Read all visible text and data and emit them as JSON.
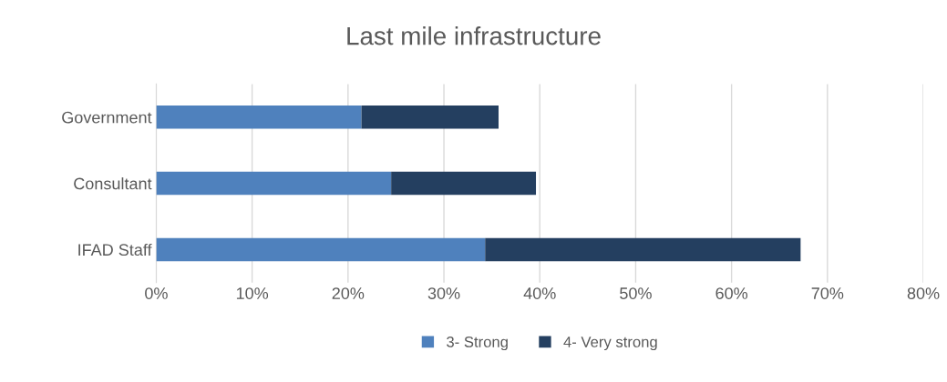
{
  "chart_data": {
    "type": "bar",
    "title": "Last mile infrastructure",
    "orientation": "horizontal",
    "stacked": true,
    "categories": [
      "Government",
      "Consultant",
      "IFAD Staff"
    ],
    "series": [
      {
        "name": "3- Strong",
        "color": "#4f81bd",
        "values": [
          21.4,
          24.5,
          34.3
        ]
      },
      {
        "name": "4- Very strong",
        "color": "#243f60",
        "values": [
          14.3,
          15.1,
          32.9
        ]
      }
    ],
    "xlim": [
      0,
      80
    ],
    "xticks": [
      {
        "value": 0,
        "label": "0%"
      },
      {
        "value": 10,
        "label": "10%"
      },
      {
        "value": 20,
        "label": "20%"
      },
      {
        "value": 30,
        "label": "30%"
      },
      {
        "value": 40,
        "label": "40%"
      },
      {
        "value": 50,
        "label": "50%"
      },
      {
        "value": 60,
        "label": "60%"
      },
      {
        "value": 70,
        "label": "70%"
      },
      {
        "value": 80,
        "label": "80%"
      }
    ],
    "grid": "x",
    "legend": "bottom"
  }
}
